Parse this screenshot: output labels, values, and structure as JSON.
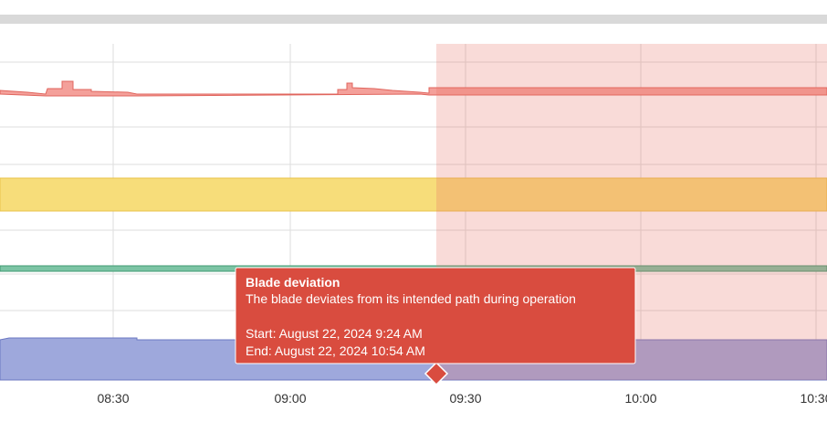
{
  "x_axis": {
    "ticks": [
      "08:30",
      "09:00",
      "09:30",
      "10:00",
      "10:30"
    ]
  },
  "tooltip": {
    "title": "Blade deviation",
    "description": "The blade deviates from its intended path during operation",
    "start": "Start: August 22, 2024 9:24 AM",
    "end": "End: August 22, 2024 10:54 AM"
  }
}
